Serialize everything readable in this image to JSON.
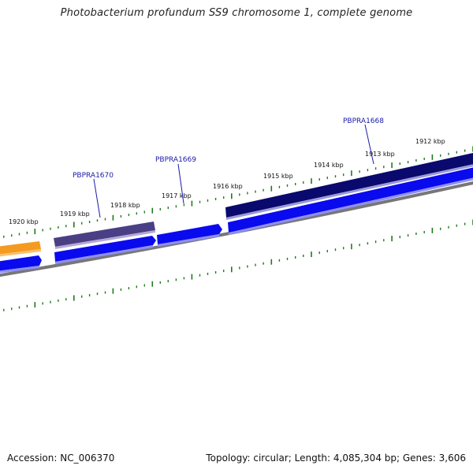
{
  "title": "Photobacterium profundum SS9 chromosome 1, complete genome",
  "footer": {
    "accession": "Accession: NC_006370",
    "topology": "Topology: circular; Length: 4,085,304 bp; Genes: 3,606"
  },
  "colors": {
    "forward_cds": "#0a0aee",
    "reverse_cds": "#09097a",
    "reverse_cds_light": "#4a3f85",
    "orange_feature": "#f08a10",
    "backbone": "#808080",
    "ticks": "#1f7a1f",
    "gene_label": "#1a1aa8"
  },
  "kbp_labels": [
    "1920 kbp",
    "1919 kbp",
    "1918 kbp",
    "1917 kbp",
    "1916 kbp",
    "1915 kbp",
    "1914 kbp",
    "1913 kbp",
    "1912 kbp"
  ],
  "gene_labels": [
    "PBPRA1670",
    "PBPRA1669",
    "PBPRA1668"
  ]
}
